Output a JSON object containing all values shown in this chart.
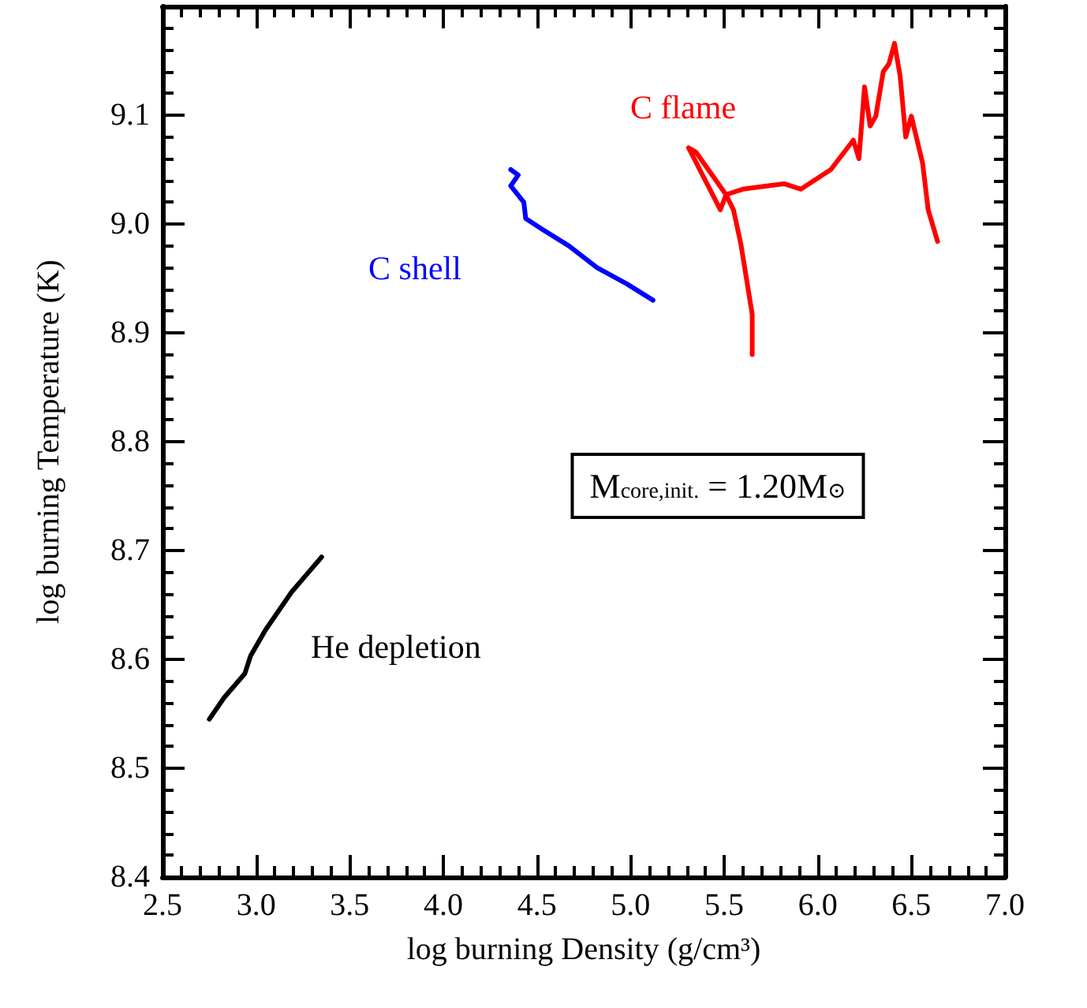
{
  "chart_data": {
    "type": "line",
    "xlabel": "log burning Density (g/cm³)",
    "ylabel": "log burning Temperature (K)",
    "xlim": [
      2.5,
      7.0
    ],
    "xticks": [
      2.5,
      {
        "value": 3.0,
        "label": "3.0"
      },
      3.5,
      {
        "value": 4.0,
        "label": "4.0"
      },
      4.5,
      {
        "value": 5.0,
        "label": "5.0"
      },
      5.5,
      {
        "value": 6.0,
        "label": "6.0"
      },
      6.5,
      {
        "value": 7.0,
        "label": "7.0"
      }
    ],
    "ylim": [
      8.4,
      9.2
    ],
    "yticks": [
      8.4,
      8.5,
      8.6,
      8.7,
      8.8,
      8.9,
      {
        "value": 9.0,
        "label": "9.0"
      },
      9.1,
      {
        "value": 9.2,
        "label": null
      }
    ],
    "grid": false,
    "marker": "none",
    "line_style": "solid",
    "annotations": [
      "M$_{core,init.}$ = 1.20M$_{⊙}$"
    ],
    "series": [
      {
        "name": "He depletion",
        "color": "#000000",
        "x": [
          2.75,
          2.83,
          2.94,
          2.97,
          3.05,
          3.19,
          3.26,
          3.35
        ],
        "values": [
          8.545,
          8.565,
          8.587,
          8.603,
          8.627,
          8.662,
          8.676,
          8.694
        ]
      },
      {
        "name": "C shell",
        "color": "#0000ff",
        "x": [
          4.36,
          4.4,
          4.36,
          4.43,
          4.44,
          4.53,
          4.67,
          4.82,
          4.98,
          5.12
        ],
        "values": [
          9.05,
          9.045,
          9.035,
          9.02,
          9.005,
          8.995,
          8.98,
          8.96,
          8.945,
          8.93
        ]
      },
      {
        "name": "C flame",
        "color": "#ff0000",
        "x": [
          5.65,
          5.65,
          5.59,
          5.55,
          5.51,
          5.48,
          5.31,
          5.35,
          5.51,
          5.6,
          5.82,
          5.91,
          6.07,
          6.19,
          6.22,
          6.25,
          6.28,
          6.31,
          6.35,
          6.38,
          6.41,
          6.44,
          6.47,
          6.5,
          6.56,
          6.59,
          6.64
        ],
        "values": [
          8.88,
          8.917,
          8.981,
          9.013,
          9.027,
          9.013,
          9.07,
          9.066,
          9.027,
          9.032,
          9.037,
          9.032,
          9.05,
          9.077,
          9.06,
          9.126,
          9.09,
          9.099,
          9.14,
          9.147,
          9.166,
          9.136,
          9.08,
          9.099,
          9.056,
          9.013,
          8.984
        ]
      }
    ]
  }
}
